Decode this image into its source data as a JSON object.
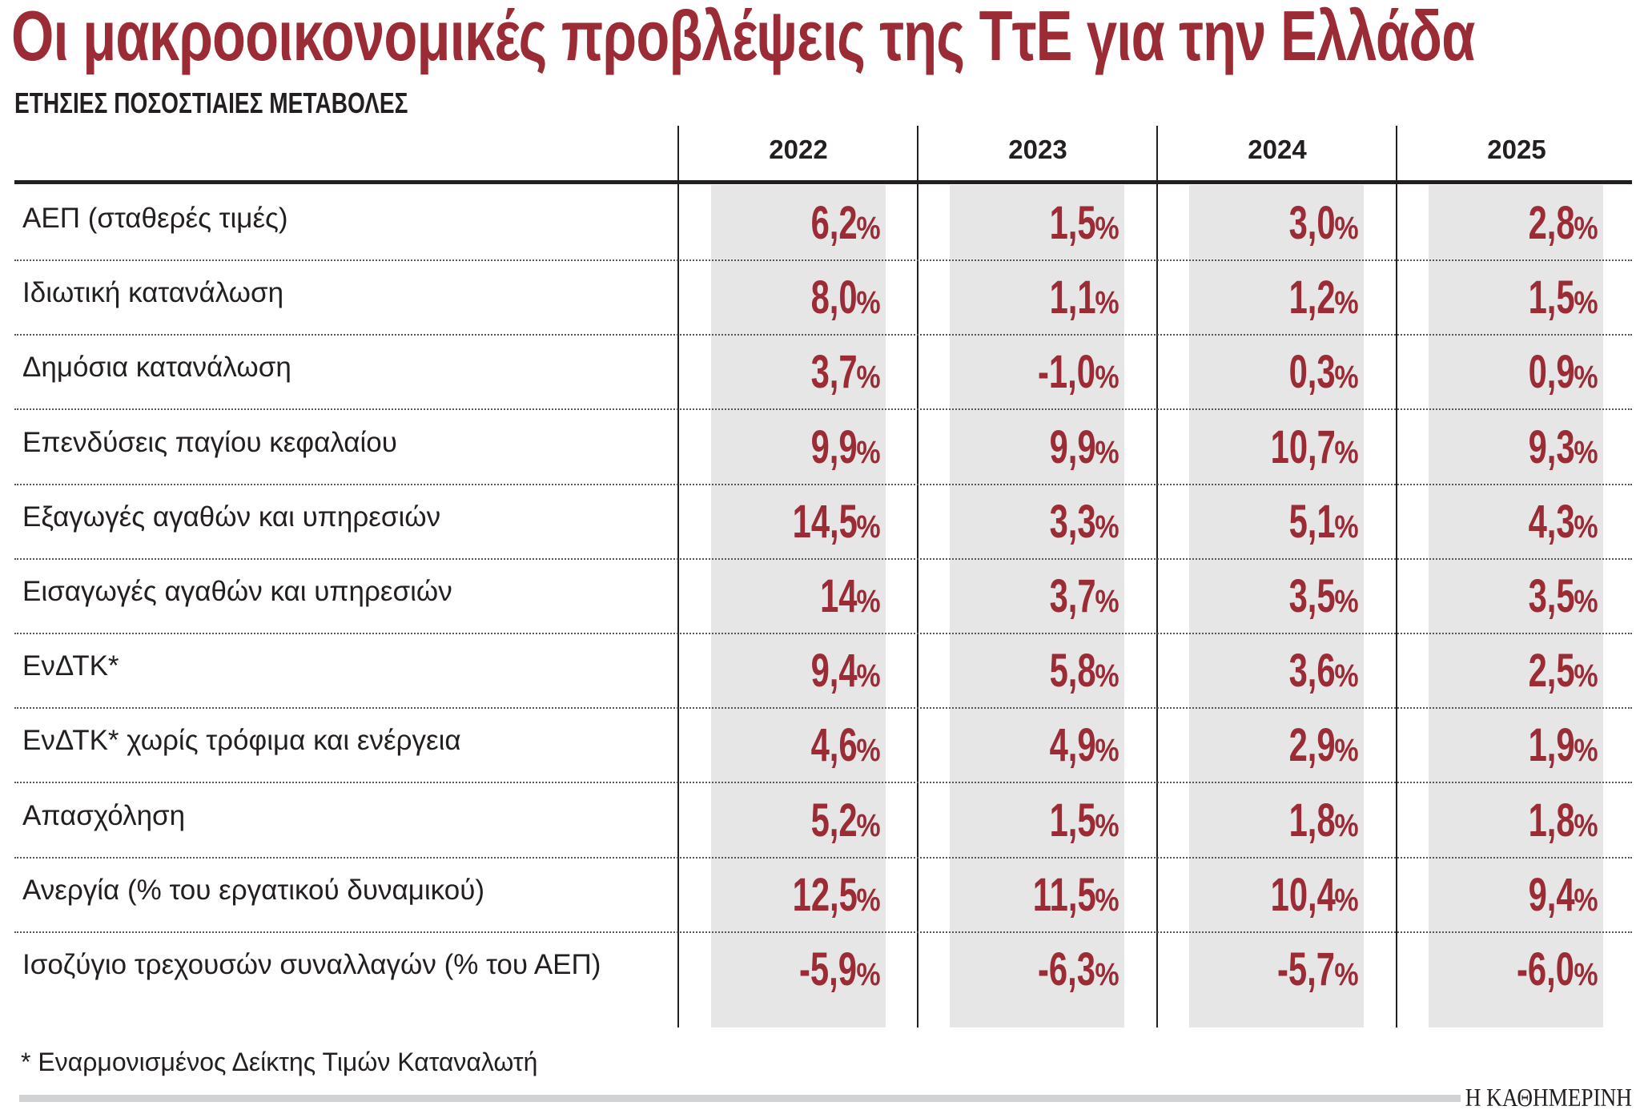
{
  "title": "Οι μακροοικονομικές προβλέψεις της ΤτΕ για την Ελλάδα",
  "subtitle": "ΕΤΗΣΙΕΣ ΠΟΣΟΣΤΙΑΙΕΣ ΜΕΤΑΒΟΛΕΣ",
  "colors": {
    "accent": "#9b2b35",
    "cell_bg": "#e6e6e7"
  },
  "years": [
    "2022",
    "2023",
    "2024",
    "2025"
  ],
  "unit": "%",
  "rows": [
    {
      "label": "ΑΕΠ (σταθερές τιμές)",
      "values": [
        "6,2",
        "1,5",
        "3,0",
        "2,8"
      ]
    },
    {
      "label": "Ιδιωτική κατανάλωση",
      "values": [
        "8,0",
        "1,1",
        "1,2",
        "1,5"
      ]
    },
    {
      "label": "Δημόσια κατανάλωση",
      "values": [
        "3,7",
        "-1,0",
        "0,3",
        "0,9"
      ]
    },
    {
      "label": "Επενδύσεις παγίου κεφαλαίου",
      "values": [
        "9,9",
        "9,9",
        "10,7",
        "9,3"
      ]
    },
    {
      "label": "Εξαγωγές αγαθών και υπηρεσιών",
      "values": [
        "14,5",
        "3,3",
        "5,1",
        "4,3"
      ]
    },
    {
      "label": "Εισαγωγές αγαθών και υπηρεσιών",
      "values": [
        "14",
        "3,7",
        "3,5",
        "3,5"
      ]
    },
    {
      "label": "ΕνΔΤΚ*",
      "values": [
        "9,4",
        "5,8",
        "3,6",
        "2,5"
      ]
    },
    {
      "label": "ΕνΔΤΚ* χωρίς τρόφιμα και ενέργεια",
      "values": [
        "4,6",
        "4,9",
        "2,9",
        "1,9"
      ]
    },
    {
      "label": "Απασχόληση",
      "values": [
        "5,2",
        "1,5",
        "1,8",
        "1,8"
      ]
    },
    {
      "label": "Ανεργία (% του εργατικού δυναμικού)",
      "values": [
        "12,5",
        "11,5",
        "10,4",
        "9,4"
      ]
    },
    {
      "label": "Ισοζύγιο τρεχουσών συναλλαγών (% του ΑΕΠ)",
      "values": [
        "-5,9",
        "-6,3",
        "-5,7",
        "-6,0"
      ]
    }
  ],
  "footnote": "* Εναρμονισμένος Δείκτης Τιμών Καταναλωτή",
  "logo": "Η ΚΑΘΗΜΕΡΙΝΗ"
}
